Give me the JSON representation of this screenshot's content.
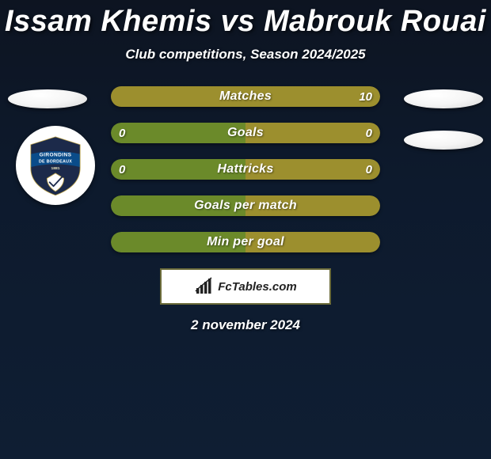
{
  "title": "Issam Khemis vs Mabrouk Rouai",
  "subtitle": "Club competitions, Season 2024/2025",
  "date": "2 november 2024",
  "brand": "FcTables.com",
  "colors": {
    "bar_olive": "#9c8f2e",
    "bar_green": "#6b8a2a",
    "club_navy": "#1c2a4a",
    "club_ribbon": "#0a4c8a"
  },
  "club": {
    "name": "Girondins de Bordeaux",
    "text_line1": "GIRONDINS",
    "text_line2": "DE BORDEAUX",
    "year": "1881"
  },
  "bars": [
    {
      "label": "Matches",
      "left_value": "",
      "right_value": "10",
      "left_fill_pct": 0,
      "left_color": "#6b8a2a",
      "right_color": "#9c8f2e",
      "show_left_val": false,
      "show_right_val": true
    },
    {
      "label": "Goals",
      "left_value": "0",
      "right_value": "0",
      "left_fill_pct": 50,
      "left_color": "#6b8a2a",
      "right_color": "#9c8f2e",
      "show_left_val": true,
      "show_right_val": true
    },
    {
      "label": "Hattricks",
      "left_value": "0",
      "right_value": "0",
      "left_fill_pct": 50,
      "left_color": "#6b8a2a",
      "right_color": "#9c8f2e",
      "show_left_val": true,
      "show_right_val": true
    },
    {
      "label": "Goals per match",
      "left_value": "",
      "right_value": "",
      "left_fill_pct": 50,
      "left_color": "#6b8a2a",
      "right_color": "#9c8f2e",
      "show_left_val": false,
      "show_right_val": false
    },
    {
      "label": "Min per goal",
      "left_value": "",
      "right_value": "",
      "left_fill_pct": 50,
      "left_color": "#6b8a2a",
      "right_color": "#9c8f2e",
      "show_left_val": false,
      "show_right_val": false
    }
  ]
}
